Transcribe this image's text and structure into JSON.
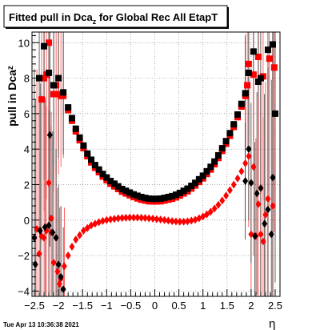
{
  "chart_data": {
    "type": "scatter",
    "title": "Fitted pull in Dca",
    "title_subscript": "z",
    "title_suffix": " for Global Rec All EtapT",
    "xlabel": "η",
    "ylabel": "pull in Dca",
    "ylabel_subscript": "z",
    "xlim": [
      -2.55,
      2.6
    ],
    "ylim": [
      -4.3,
      10.6
    ],
    "x_ticks": [
      -2.5,
      -2,
      -1.5,
      -1,
      -0.5,
      0,
      0.5,
      1,
      1.5,
      2,
      2.5
    ],
    "x_tick_labels": [
      "−2.5",
      "−2",
      "−1.5",
      "−1",
      "−0.5",
      "0",
      "0.5",
      "1",
      "1.5",
      "2",
      "2.5"
    ],
    "y_ticks": [
      -4,
      -2,
      0,
      2,
      4,
      6,
      8,
      10
    ],
    "y_tick_labels": [
      "−4",
      "−2",
      "0",
      "2",
      "4",
      "6",
      "8",
      "10"
    ],
    "grid": true,
    "timestamp": "Tue Apr 13 10:36:38 2021",
    "colors": {
      "black_series": "#000000",
      "red_series": "#ff0000",
      "frame": "#000000"
    },
    "series": [
      {
        "marker": "square",
        "color": "#ff0000",
        "points": [
          [
            -1.9,
            7.0
          ],
          [
            -1.8,
            6.2
          ],
          [
            -1.72,
            5.6
          ],
          [
            -1.64,
            5.0
          ],
          [
            -1.56,
            4.5
          ],
          [
            -1.48,
            4.05
          ],
          [
            -1.4,
            3.6
          ],
          [
            -1.32,
            3.25
          ],
          [
            -1.24,
            2.95
          ],
          [
            -1.16,
            2.7
          ],
          [
            -1.08,
            2.45
          ],
          [
            -1.0,
            2.25
          ],
          [
            -0.92,
            2.05
          ],
          [
            -0.84,
            1.9
          ],
          [
            -0.76,
            1.75
          ],
          [
            -0.68,
            1.6
          ],
          [
            -0.6,
            1.5
          ],
          [
            -0.52,
            1.4
          ],
          [
            -0.44,
            1.3
          ],
          [
            -0.36,
            1.22
          ],
          [
            -0.28,
            1.15
          ],
          [
            -0.2,
            1.1
          ],
          [
            -0.12,
            1.06
          ],
          [
            -0.04,
            1.05
          ],
          [
            0.04,
            1.05
          ],
          [
            0.12,
            1.06
          ],
          [
            0.2,
            1.1
          ],
          [
            0.28,
            1.15
          ],
          [
            0.36,
            1.2
          ],
          [
            0.44,
            1.28
          ],
          [
            0.52,
            1.38
          ],
          [
            0.6,
            1.5
          ],
          [
            0.68,
            1.62
          ],
          [
            0.76,
            1.78
          ],
          [
            0.84,
            1.95
          ],
          [
            0.92,
            2.15
          ],
          [
            1.0,
            2.35
          ],
          [
            1.08,
            2.6
          ],
          [
            1.16,
            2.85
          ],
          [
            1.24,
            3.15
          ],
          [
            1.32,
            3.5
          ],
          [
            1.4,
            3.9
          ],
          [
            1.48,
            4.3
          ],
          [
            1.56,
            4.75
          ],
          [
            1.64,
            5.25
          ],
          [
            1.72,
            5.8
          ],
          [
            1.8,
            6.4
          ],
          [
            1.88,
            7.0
          ],
          [
            -2.2,
            10.0
          ],
          [
            -2.25,
            8.2
          ],
          [
            -2.3,
            8.0
          ],
          [
            -2.35,
            6.8
          ],
          [
            -2.05,
            7.6
          ],
          [
            -2.1,
            7.1
          ],
          [
            -2.0,
            7.1
          ],
          [
            -1.95,
            7.0
          ],
          [
            1.95,
            8.8
          ],
          [
            2.05,
            8.2
          ],
          [
            2.15,
            9.2
          ],
          [
            2.25,
            8.1
          ],
          [
            2.38,
            9.1
          ],
          [
            2.48,
            8.6
          ],
          [
            1.92,
            7.6
          ]
        ]
      },
      {
        "marker": "square",
        "color": "#000000",
        "points": [
          [
            -1.9,
            7.2
          ],
          [
            -1.8,
            6.35
          ],
          [
            -1.72,
            5.75
          ],
          [
            -1.64,
            5.15
          ],
          [
            -1.56,
            4.65
          ],
          [
            -1.48,
            4.2
          ],
          [
            -1.4,
            3.75
          ],
          [
            -1.32,
            3.4
          ],
          [
            -1.24,
            3.1
          ],
          [
            -1.16,
            2.85
          ],
          [
            -1.08,
            2.6
          ],
          [
            -1.0,
            2.4
          ],
          [
            -0.92,
            2.2
          ],
          [
            -0.84,
            2.05
          ],
          [
            -0.76,
            1.9
          ],
          [
            -0.68,
            1.75
          ],
          [
            -0.6,
            1.65
          ],
          [
            -0.52,
            1.55
          ],
          [
            -0.44,
            1.45
          ],
          [
            -0.36,
            1.37
          ],
          [
            -0.28,
            1.3
          ],
          [
            -0.2,
            1.25
          ],
          [
            -0.12,
            1.21
          ],
          [
            -0.04,
            1.2
          ],
          [
            0.04,
            1.2
          ],
          [
            0.12,
            1.21
          ],
          [
            0.2,
            1.25
          ],
          [
            0.28,
            1.3
          ],
          [
            0.36,
            1.35
          ],
          [
            0.44,
            1.43
          ],
          [
            0.52,
            1.53
          ],
          [
            0.6,
            1.65
          ],
          [
            0.68,
            1.77
          ],
          [
            0.76,
            1.93
          ],
          [
            0.84,
            2.1
          ],
          [
            0.92,
            2.3
          ],
          [
            1.0,
            2.5
          ],
          [
            1.08,
            2.75
          ],
          [
            1.16,
            3.0
          ],
          [
            1.24,
            3.3
          ],
          [
            1.32,
            3.65
          ],
          [
            1.4,
            4.05
          ],
          [
            1.48,
            4.45
          ],
          [
            1.56,
            4.9
          ],
          [
            1.64,
            5.4
          ],
          [
            1.72,
            5.95
          ],
          [
            1.8,
            6.55
          ],
          [
            1.88,
            7.15
          ],
          [
            -2.3,
            9.8
          ],
          [
            -2.4,
            8.0
          ],
          [
            -2.2,
            8.3
          ],
          [
            -2.1,
            7.6
          ],
          [
            -2.0,
            8.0
          ],
          [
            2.05,
            9.5
          ],
          [
            2.2,
            8.0
          ],
          [
            2.35,
            9.6
          ],
          [
            2.45,
            9.9
          ],
          [
            2.5,
            6.0
          ],
          [
            1.95,
            8.3
          ],
          [
            2.15,
            7.8
          ]
        ]
      },
      {
        "marker": "diamond",
        "color": "#ff0000",
        "points": [
          [
            -1.88,
            -2.6
          ],
          [
            -1.8,
            -2.0
          ],
          [
            -1.72,
            -1.5
          ],
          [
            -1.64,
            -1.1
          ],
          [
            -1.56,
            -0.85
          ],
          [
            -1.48,
            -0.6
          ],
          [
            -1.4,
            -0.45
          ],
          [
            -1.32,
            -0.3
          ],
          [
            -1.24,
            -0.2
          ],
          [
            -1.16,
            -0.12
          ],
          [
            -1.08,
            -0.05
          ],
          [
            -1.0,
            0.0
          ],
          [
            -0.92,
            0.04
          ],
          [
            -0.84,
            0.07
          ],
          [
            -0.76,
            0.1
          ],
          [
            -0.68,
            0.12
          ],
          [
            -0.6,
            0.13
          ],
          [
            -0.52,
            0.14
          ],
          [
            -0.44,
            0.14
          ],
          [
            -0.36,
            0.14
          ],
          [
            -0.28,
            0.13
          ],
          [
            -0.2,
            0.12
          ],
          [
            -0.12,
            0.1
          ],
          [
            -0.04,
            0.08
          ],
          [
            0.04,
            0.05
          ],
          [
            0.12,
            0.03
          ],
          [
            0.2,
            0.0
          ],
          [
            0.28,
            -0.03
          ],
          [
            0.36,
            -0.06
          ],
          [
            0.44,
            -0.08
          ],
          [
            0.52,
            -0.09
          ],
          [
            0.6,
            -0.09
          ],
          [
            0.68,
            -0.07
          ],
          [
            0.76,
            -0.03
          ],
          [
            0.84,
            0.02
          ],
          [
            0.92,
            0.1
          ],
          [
            1.0,
            0.2
          ],
          [
            1.08,
            0.32
          ],
          [
            1.16,
            0.47
          ],
          [
            1.24,
            0.65
          ],
          [
            1.32,
            0.86
          ],
          [
            1.4,
            1.1
          ],
          [
            1.48,
            1.38
          ],
          [
            1.56,
            1.68
          ],
          [
            1.64,
            2.0
          ],
          [
            1.72,
            2.35
          ],
          [
            1.8,
            2.75
          ],
          [
            1.88,
            3.2
          ],
          [
            -1.95,
            -3.3
          ],
          [
            -1.98,
            -3.6
          ],
          [
            -2.02,
            -2.9
          ],
          [
            -2.1,
            -2.4
          ],
          [
            -2.15,
            -0.7
          ],
          [
            -2.25,
            -0.6
          ],
          [
            -2.3,
            -1.0
          ],
          [
            -2.35,
            -0.9
          ],
          [
            -2.4,
            -1.9
          ],
          [
            -2.45,
            -0.5
          ],
          [
            -2.2,
            2.1
          ],
          [
            -2.15,
            0.1
          ],
          [
            -2.05,
            -1.0
          ],
          [
            2.0,
            -0.8
          ],
          [
            2.05,
            3.0
          ],
          [
            2.1,
            -0.9
          ],
          [
            2.15,
            0.9
          ],
          [
            2.2,
            -0.8
          ],
          [
            2.25,
            -1.2
          ],
          [
            2.3,
            0.3
          ],
          [
            2.35,
            1.2
          ],
          [
            2.45,
            0.8
          ],
          [
            1.95,
            3.6
          ]
        ]
      },
      {
        "marker": "diamond",
        "color": "#000000",
        "points": [
          [
            -1.9,
            -3.9
          ],
          [
            -1.95,
            -3.2
          ],
          [
            -2.0,
            -2.5
          ],
          [
            -2.05,
            -1.0
          ],
          [
            -2.12,
            -0.7
          ],
          [
            -2.18,
            4.8
          ],
          [
            -2.2,
            -0.3
          ],
          [
            -2.28,
            -0.4
          ],
          [
            -2.38,
            -0.6
          ],
          [
            -2.48,
            -2.5
          ],
          [
            -2.5,
            -1.0
          ],
          [
            1.88,
            2.2
          ],
          [
            1.95,
            4.0
          ],
          [
            2.0,
            2.1
          ],
          [
            2.08,
            -0.9
          ],
          [
            2.12,
            1.5
          ],
          [
            2.2,
            1.8
          ],
          [
            2.28,
            -0.2
          ],
          [
            2.35,
            0.6
          ],
          [
            2.45,
            2.4
          ],
          [
            2.42,
            -0.8
          ]
        ]
      }
    ]
  }
}
